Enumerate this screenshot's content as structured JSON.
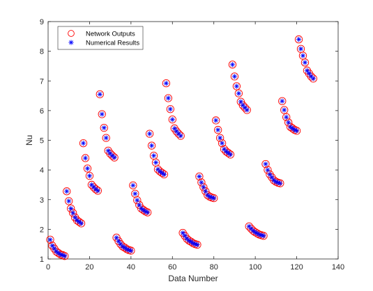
{
  "chart_data": {
    "type": "scatter",
    "title": "",
    "xlabel": "Data Number",
    "ylabel": "Nu",
    "xlim": [
      0,
      140
    ],
    "ylim": [
      1,
      9
    ],
    "xticks": [
      0,
      20,
      40,
      60,
      80,
      100,
      120,
      140
    ],
    "yticks": [
      1,
      2,
      3,
      4,
      5,
      6,
      7,
      8,
      9
    ],
    "grid": false,
    "legend_position": "top-left",
    "x": [
      1,
      2,
      3,
      4,
      5,
      6,
      7,
      8,
      9,
      10,
      11,
      12,
      13,
      14,
      15,
      16,
      17,
      18,
      19,
      20,
      21,
      22,
      23,
      24,
      25,
      26,
      27,
      28,
      29,
      30,
      31,
      32,
      33,
      34,
      35,
      36,
      37,
      38,
      39,
      40,
      41,
      42,
      43,
      44,
      45,
      46,
      47,
      48,
      49,
      50,
      51,
      52,
      53,
      54,
      55,
      56,
      57,
      58,
      59,
      60,
      61,
      62,
      63,
      64,
      65,
      66,
      67,
      68,
      69,
      70,
      71,
      72,
      73,
      74,
      75,
      76,
      77,
      78,
      79,
      80,
      81,
      82,
      83,
      84,
      85,
      86,
      87,
      88,
      89,
      90,
      91,
      92,
      93,
      94,
      95,
      96,
      97,
      98,
      99,
      100,
      101,
      102,
      103,
      104,
      105,
      106,
      107,
      108,
      109,
      110,
      111,
      112,
      113,
      114,
      115,
      116,
      117,
      118,
      119,
      120,
      121,
      122,
      123,
      124,
      125,
      126,
      127,
      128
    ],
    "series": [
      {
        "name": "Network Outputs",
        "marker": "circle",
        "color": "#ff0000",
        "values": [
          1.65,
          1.45,
          1.35,
          1.25,
          1.2,
          1.15,
          1.13,
          1.1,
          3.28,
          2.95,
          2.7,
          2.55,
          2.4,
          2.3,
          2.25,
          2.2,
          4.9,
          4.4,
          4.05,
          3.8,
          3.5,
          3.42,
          3.35,
          3.3,
          6.55,
          5.88,
          5.42,
          5.08,
          4.65,
          4.55,
          4.48,
          4.42,
          1.72,
          1.6,
          1.5,
          1.42,
          1.38,
          1.33,
          1.3,
          1.28,
          3.48,
          3.2,
          2.98,
          2.82,
          2.7,
          2.65,
          2.6,
          2.57,
          5.22,
          4.82,
          4.48,
          4.25,
          4.02,
          3.95,
          3.9,
          3.85,
          6.92,
          6.42,
          6.05,
          5.7,
          5.4,
          5.3,
          5.22,
          5.15,
          1.88,
          1.78,
          1.68,
          1.62,
          1.58,
          1.53,
          1.5,
          1.48,
          3.78,
          3.58,
          3.42,
          3.28,
          3.15,
          3.1,
          3.07,
          3.05,
          5.67,
          5.35,
          5.08,
          4.9,
          4.7,
          4.62,
          4.57,
          4.52,
          7.55,
          7.15,
          6.82,
          6.58,
          6.3,
          6.18,
          6.1,
          6.02,
          2.1,
          2.02,
          1.95,
          1.9,
          1.86,
          1.82,
          1.8,
          1.78,
          4.2,
          4.0,
          3.85,
          3.75,
          3.65,
          3.6,
          3.57,
          3.55,
          6.32,
          6.02,
          5.78,
          5.6,
          5.45,
          5.4,
          5.35,
          5.32,
          8.4,
          8.08,
          7.85,
          7.62,
          7.35,
          7.25,
          7.15,
          7.08
        ]
      },
      {
        "name": "Numerical Results",
        "marker": "asterisk",
        "color": "#0000ff",
        "values": [
          1.65,
          1.45,
          1.35,
          1.25,
          1.2,
          1.15,
          1.13,
          1.1,
          3.28,
          2.95,
          2.7,
          2.55,
          2.4,
          2.3,
          2.25,
          2.2,
          4.9,
          4.4,
          4.05,
          3.8,
          3.5,
          3.42,
          3.35,
          3.3,
          6.55,
          5.88,
          5.42,
          5.08,
          4.65,
          4.55,
          4.48,
          4.42,
          1.72,
          1.6,
          1.5,
          1.42,
          1.38,
          1.33,
          1.3,
          1.28,
          3.48,
          3.2,
          2.98,
          2.82,
          2.7,
          2.65,
          2.6,
          2.57,
          5.22,
          4.82,
          4.48,
          4.25,
          4.02,
          3.95,
          3.9,
          3.85,
          6.92,
          6.42,
          6.05,
          5.7,
          5.4,
          5.3,
          5.22,
          5.15,
          1.88,
          1.78,
          1.68,
          1.62,
          1.58,
          1.53,
          1.5,
          1.48,
          3.78,
          3.58,
          3.42,
          3.28,
          3.15,
          3.1,
          3.07,
          3.05,
          5.67,
          5.35,
          5.08,
          4.9,
          4.7,
          4.62,
          4.57,
          4.52,
          7.55,
          7.15,
          6.82,
          6.58,
          6.3,
          6.18,
          6.1,
          6.02,
          2.1,
          2.02,
          1.95,
          1.9,
          1.86,
          1.82,
          1.8,
          1.78,
          4.2,
          4.0,
          3.85,
          3.75,
          3.65,
          3.6,
          3.57,
          3.55,
          6.32,
          6.02,
          5.78,
          5.6,
          5.45,
          5.4,
          5.35,
          5.32,
          8.4,
          8.08,
          7.85,
          7.62,
          7.35,
          7.25,
          7.15,
          7.08
        ]
      }
    ]
  }
}
